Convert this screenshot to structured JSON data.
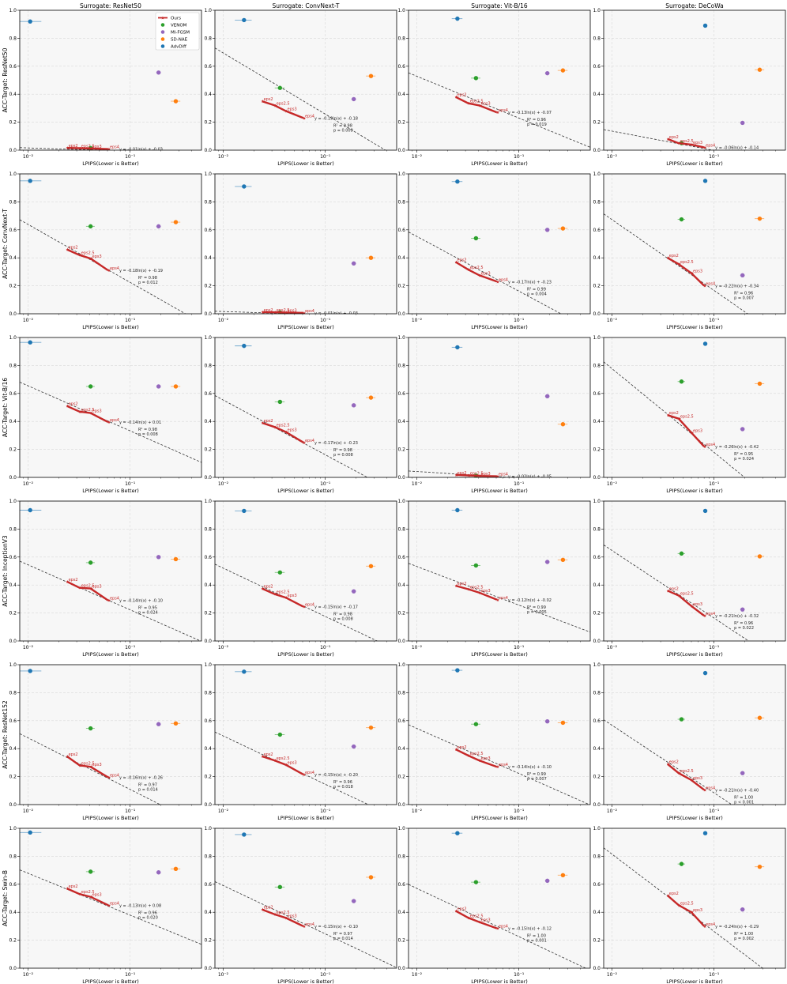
{
  "figure": {
    "xlabel": "LPIPS(Lower is Better)",
    "x_tick_labels": [
      "10⁻²",
      "10⁻¹"
    ],
    "y_tick_labels": [
      "0.0",
      "0.2",
      "0.4",
      "0.6",
      "0.8",
      "1.0"
    ]
  },
  "legend": {
    "placement": "top-right of first panel",
    "entries": [
      {
        "name": "Ours",
        "color": "#c62828",
        "marker": "star-line"
      },
      {
        "name": "VENOM",
        "color": "#2ca02c",
        "marker": "circle"
      },
      {
        "name": "MI-FGSM",
        "color": "#9467bd",
        "marker": "circle"
      },
      {
        "name": "SD-NAE",
        "color": "#ff7f0e",
        "marker": "circle"
      },
      {
        "name": "AdvDiff",
        "color": "#1f77b4",
        "marker": "circle"
      }
    ]
  },
  "surrogates": [
    "Surrogate: ResNet50",
    "Surrogate: ConvNext-T",
    "Surrogate: Vit-B/16",
    "Surrogate: DeCoWa"
  ],
  "targets": [
    "ACC-Target: ResNet50",
    "ACC-Target: ConvNext-T",
    "ACC-Target: Vit-B/16",
    "ACC-Target: InceptionV3",
    "ACC-Target: ResNet152",
    "ACC-Target: Swin-B"
  ],
  "chart_data": {
    "type": "scatter",
    "x_scale": "log",
    "xlim": [
      0.0083,
      0.5
    ],
    "ylim": [
      0,
      1
    ],
    "ours_labels": [
      "eps2",
      "eps2.5",
      "eps3",
      "eps4"
    ],
    "panels": [
      {
        "row": 0,
        "col": 0,
        "ours_x": [
          0.024,
          0.032,
          0.041,
          0.061
        ],
        "ours_y": [
          0.016,
          0.014,
          0.012,
          0.008
        ],
        "fit_a": -0.01,
        "fit_b": -0.03,
        "eq": "y = -0.01ln(x) + -0.03",
        "r2": "R² = 0.98",
        "p": "p = 0.012",
        "venom": [
          0.041,
          0.015
        ],
        "mifgsm": [
          0.19,
          0.555
        ],
        "sdnae": [
          0.28,
          0.35
        ],
        "advdiff": [
          0.0105,
          0.92
        ]
      },
      {
        "row": 0,
        "col": 1,
        "ours_x": [
          0.024,
          0.032,
          0.041,
          0.061
        ],
        "ours_y": [
          0.35,
          0.32,
          0.28,
          0.23
        ],
        "fit_a": -0.19,
        "fit_b": -0.18,
        "eq": "y = -0.19ln(x) + -0.18",
        "r2": "R² = 0.98",
        "p": "p = 0.009",
        "venom": [
          0.036,
          0.445
        ],
        "mifgsm": [
          0.19,
          0.365
        ],
        "sdnae": [
          0.28,
          0.53
        ],
        "advdiff": [
          0.016,
          0.93
        ]
      },
      {
        "row": 0,
        "col": 2,
        "ours_x": [
          0.024,
          0.032,
          0.041,
          0.061
        ],
        "ours_y": [
          0.38,
          0.335,
          0.32,
          0.27
        ],
        "fit_a": -0.13,
        "fit_b": -0.07,
        "eq": "y = -0.13ln(x) + -0.07",
        "r2": "R² = 0.96",
        "p": "p = 0.019",
        "venom": [
          0.038,
          0.515
        ],
        "mifgsm": [
          0.19,
          0.55
        ],
        "sdnae": [
          0.27,
          0.57
        ],
        "advdiff": [
          0.025,
          0.94
        ]
      },
      {
        "row": 0,
        "col": 3,
        "ours_x": [
          0.035,
          0.045,
          0.06,
          0.08
        ],
        "ours_y": [
          0.08,
          0.05,
          0.04,
          0.02
        ],
        "fit_a": -0.06,
        "fit_b": -0.14,
        "eq": "y = -0.06ln(x) + -0.14",
        "r2": "R² = 0.99",
        "p": "p = 0.006",
        "venom": [
          0.048,
          0.05
        ],
        "mifgsm": [
          0.19,
          0.195
        ],
        "sdnae": [
          0.28,
          0.575
        ],
        "advdiff": [
          0.082,
          0.89
        ]
      },
      {
        "row": 1,
        "col": 0,
        "ours_x": [
          0.024,
          0.032,
          0.041,
          0.061
        ],
        "ours_y": [
          0.46,
          0.42,
          0.395,
          0.31
        ],
        "fit_a": -0.18,
        "fit_b": -0.19,
        "eq": "y = -0.18ln(x) + -0.19",
        "r2": "R² = 0.98",
        "p": "p = 0.012",
        "venom": [
          0.041,
          0.625
        ],
        "mifgsm": [
          0.19,
          0.625
        ],
        "sdnae": [
          0.28,
          0.655
        ],
        "advdiff": [
          0.0105,
          0.95
        ]
      },
      {
        "row": 1,
        "col": 1,
        "ours_x": [
          0.024,
          0.032,
          0.041,
          0.061
        ],
        "ours_y": [
          0.012,
          0.011,
          0.009,
          0.007
        ],
        "fit_a": -0.01,
        "fit_b": -0.03,
        "eq": "y = -0.01ln(x) + -0.03",
        "r2": "R² = 0.84",
        "p": "p = 0.084",
        "venom": [
          0.036,
          0.01
        ],
        "mifgsm": [
          0.19,
          0.36
        ],
        "sdnae": [
          0.28,
          0.4
        ],
        "advdiff": [
          0.016,
          0.91
        ]
      },
      {
        "row": 1,
        "col": 2,
        "ours_x": [
          0.024,
          0.032,
          0.041,
          0.061
        ],
        "ours_y": [
          0.37,
          0.315,
          0.275,
          0.23
        ],
        "fit_a": -0.17,
        "fit_b": -0.23,
        "eq": "y = -0.17ln(x) + -0.23",
        "r2": "R² = 0.99",
        "p": "p = 0.004",
        "venom": [
          0.038,
          0.54
        ],
        "mifgsm": [
          0.19,
          0.6
        ],
        "sdnae": [
          0.27,
          0.61
        ],
        "advdiff": [
          0.025,
          0.945
        ]
      },
      {
        "row": 1,
        "col": 3,
        "ours_x": [
          0.035,
          0.045,
          0.06,
          0.08
        ],
        "ours_y": [
          0.4,
          0.355,
          0.29,
          0.2
        ],
        "fit_a": -0.22,
        "fit_b": -0.34,
        "eq": "y = -0.22ln(x) + -0.34",
        "r2": "R² = 0.96",
        "p": "p = 0.007",
        "venom": [
          0.048,
          0.675
        ],
        "mifgsm": [
          0.19,
          0.275
        ],
        "sdnae": [
          0.28,
          0.68
        ],
        "advdiff": [
          0.082,
          0.95
        ]
      },
      {
        "row": 2,
        "col": 0,
        "ours_x": [
          0.024,
          0.032,
          0.041,
          0.061
        ],
        "ours_y": [
          0.51,
          0.47,
          0.46,
          0.395
        ],
        "fit_a": -0.14,
        "fit_b": 0.01,
        "eq": "y = -0.14ln(x) + 0.01",
        "r2": "R² = 0.98",
        "p": "p = 0.008",
        "venom": [
          0.041,
          0.65
        ],
        "mifgsm": [
          0.19,
          0.65
        ],
        "sdnae": [
          0.28,
          0.65
        ],
        "advdiff": [
          0.0105,
          0.965
        ]
      },
      {
        "row": 2,
        "col": 1,
        "ours_x": [
          0.024,
          0.032,
          0.041,
          0.061
        ],
        "ours_y": [
          0.39,
          0.36,
          0.325,
          0.25
        ],
        "fit_a": -0.17,
        "fit_b": -0.23,
        "eq": "y = -0.17ln(x) + -0.23",
        "r2": "R² = 0.98",
        "p": "p = 0.008",
        "venom": [
          0.036,
          0.54
        ],
        "mifgsm": [
          0.19,
          0.515
        ],
        "sdnae": [
          0.28,
          0.57
        ],
        "advdiff": [
          0.016,
          0.94
        ]
      },
      {
        "row": 2,
        "col": 2,
        "ours_x": [
          0.024,
          0.032,
          0.041,
          0.061
        ],
        "ours_y": [
          0.018,
          0.014,
          0.01,
          0.008
        ],
        "fit_a": -0.02,
        "fit_b": -0.05,
        "eq": "y = -0.02ln(x) + -0.05",
        "r2": "R² = 0.72",
        "p": "p = 0.150",
        "venom": [
          0.038,
          0.012
        ],
        "mifgsm": [
          0.19,
          0.58
        ],
        "sdnae": [
          0.27,
          0.38
        ],
        "advdiff": [
          0.025,
          0.93
        ]
      },
      {
        "row": 2,
        "col": 3,
        "ours_x": [
          0.035,
          0.045,
          0.06,
          0.08
        ],
        "ours_y": [
          0.445,
          0.42,
          0.32,
          0.22
        ],
        "fit_a": -0.26,
        "fit_b": -0.42,
        "eq": "y = -0.26ln(x) + -0.42",
        "r2": "R² = 0.95",
        "p": "p = 0.024",
        "venom": [
          0.048,
          0.685
        ],
        "mifgsm": [
          0.19,
          0.345
        ],
        "sdnae": [
          0.28,
          0.67
        ],
        "advdiff": [
          0.082,
          0.955
        ]
      },
      {
        "row": 3,
        "col": 0,
        "ours_x": [
          0.024,
          0.032,
          0.041,
          0.061
        ],
        "ours_y": [
          0.425,
          0.38,
          0.375,
          0.29
        ],
        "fit_a": -0.14,
        "fit_b": -0.1,
        "eq": "y = -0.14ln(x) + -0.10",
        "r2": "R² = 0.95",
        "p": "p = 0.024",
        "venom": [
          0.041,
          0.56
        ],
        "mifgsm": [
          0.19,
          0.6
        ],
        "sdnae": [
          0.28,
          0.585
        ],
        "advdiff": [
          0.0105,
          0.935
        ]
      },
      {
        "row": 3,
        "col": 1,
        "ours_x": [
          0.024,
          0.032,
          0.041,
          0.061
        ],
        "ours_y": [
          0.375,
          0.335,
          0.31,
          0.245
        ],
        "fit_a": -0.15,
        "fit_b": -0.17,
        "eq": "y = -0.15ln(x) + -0.17",
        "r2": "R² = 0.98",
        "p": "p = 0.008",
        "venom": [
          0.036,
          0.49
        ],
        "mifgsm": [
          0.19,
          0.355
        ],
        "sdnae": [
          0.28,
          0.535
        ],
        "advdiff": [
          0.016,
          0.93
        ]
      },
      {
        "row": 3,
        "col": 2,
        "ours_x": [
          0.024,
          0.032,
          0.041,
          0.061
        ],
        "ours_y": [
          0.395,
          0.37,
          0.345,
          0.295
        ],
        "fit_a": -0.12,
        "fit_b": -0.02,
        "eq": "y = -0.12ln(x) + -0.02",
        "r2": "R² = 0.99",
        "p": "p = 0.005",
        "venom": [
          0.038,
          0.54
        ],
        "mifgsm": [
          0.19,
          0.565
        ],
        "sdnae": [
          0.27,
          0.58
        ],
        "advdiff": [
          0.025,
          0.935
        ]
      },
      {
        "row": 3,
        "col": 3,
        "ours_x": [
          0.035,
          0.045,
          0.06,
          0.08
        ],
        "ours_y": [
          0.36,
          0.325,
          0.25,
          0.18
        ],
        "fit_a": -0.21,
        "fit_b": -0.32,
        "eq": "y = -0.21ln(x) + -0.32",
        "r2": "R² = 0.96",
        "p": "p = 0.022",
        "venom": [
          0.048,
          0.625
        ],
        "mifgsm": [
          0.19,
          0.225
        ],
        "sdnae": [
          0.28,
          0.605
        ],
        "advdiff": [
          0.082,
          0.93
        ]
      },
      {
        "row": 4,
        "col": 0,
        "ours_x": [
          0.024,
          0.032,
          0.041,
          0.061
        ],
        "ours_y": [
          0.345,
          0.28,
          0.27,
          0.195
        ],
        "fit_a": -0.16,
        "fit_b": -0.26,
        "eq": "y = -0.16ln(x) + -0.26",
        "r2": "R² = 0.97",
        "p": "p = 0.014",
        "venom": [
          0.041,
          0.545
        ],
        "mifgsm": [
          0.19,
          0.575
        ],
        "sdnae": [
          0.28,
          0.58
        ],
        "advdiff": [
          0.0105,
          0.955
        ]
      },
      {
        "row": 4,
        "col": 1,
        "ours_x": [
          0.024,
          0.032,
          0.041,
          0.061
        ],
        "ours_y": [
          0.345,
          0.315,
          0.285,
          0.215
        ],
        "fit_a": -0.15,
        "fit_b": -0.2,
        "eq": "y = -0.15ln(x) + -0.20",
        "r2": "R² = 0.96",
        "p": "p = 0.018",
        "venom": [
          0.036,
          0.5
        ],
        "mifgsm": [
          0.19,
          0.415
        ],
        "sdnae": [
          0.28,
          0.55
        ],
        "advdiff": [
          0.016,
          0.95
        ]
      },
      {
        "row": 4,
        "col": 2,
        "ours_x": [
          0.024,
          0.032,
          0.041,
          0.061
        ],
        "ours_y": [
          0.395,
          0.35,
          0.315,
          0.27
        ],
        "fit_a": -0.14,
        "fit_b": -0.1,
        "eq": "y = -0.14ln(x) + -0.10",
        "r2": "R² = 0.99",
        "p": "p = 0.007",
        "venom": [
          0.038,
          0.575
        ],
        "mifgsm": [
          0.19,
          0.595
        ],
        "sdnae": [
          0.27,
          0.585
        ],
        "advdiff": [
          0.025,
          0.96
        ]
      },
      {
        "row": 4,
        "col": 3,
        "ours_x": [
          0.035,
          0.045,
          0.06,
          0.08
        ],
        "ours_y": [
          0.29,
          0.225,
          0.175,
          0.105
        ],
        "fit_a": -0.21,
        "fit_b": -0.4,
        "eq": "y = -0.21ln(x) + -0.40",
        "r2": "R² = 1.00",
        "p": "p < 0.001",
        "venom": [
          0.048,
          0.61
        ],
        "mifgsm": [
          0.19,
          0.225
        ],
        "sdnae": [
          0.28,
          0.62
        ],
        "advdiff": [
          0.082,
          0.94
        ]
      },
      {
        "row": 5,
        "col": 0,
        "ours_x": [
          0.024,
          0.032,
          0.041,
          0.061
        ],
        "ours_y": [
          0.57,
          0.53,
          0.51,
          0.45
        ],
        "fit_a": -0.13,
        "fit_b": 0.08,
        "eq": "y = -0.13ln(x) + 0.08",
        "r2": "R² = 0.96",
        "p": "p = 0.020",
        "venom": [
          0.041,
          0.69
        ],
        "mifgsm": [
          0.19,
          0.685
        ],
        "sdnae": [
          0.28,
          0.71
        ],
        "advdiff": [
          0.0105,
          0.97
        ]
      },
      {
        "row": 5,
        "col": 1,
        "ours_x": [
          0.024,
          0.032,
          0.041,
          0.061
        ],
        "ours_y": [
          0.42,
          0.385,
          0.36,
          0.3
        ],
        "fit_a": -0.15,
        "fit_b": -0.1,
        "eq": "y = -0.15ln(x) + -0.10",
        "r2": "R² = 0.97",
        "p": "p = 0.014",
        "venom": [
          0.036,
          0.58
        ],
        "mifgsm": [
          0.19,
          0.48
        ],
        "sdnae": [
          0.28,
          0.65
        ],
        "advdiff": [
          0.016,
          0.955
        ]
      },
      {
        "row": 5,
        "col": 2,
        "ours_x": [
          0.024,
          0.032,
          0.041,
          0.061
        ],
        "ours_y": [
          0.41,
          0.36,
          0.33,
          0.285
        ],
        "fit_a": -0.15,
        "fit_b": -0.12,
        "eq": "y = -0.15ln(x) + -0.12",
        "r2": "R² = 1.00",
        "p": "p = 0.001",
        "venom": [
          0.038,
          0.615
        ],
        "mifgsm": [
          0.19,
          0.625
        ],
        "sdnae": [
          0.27,
          0.665
        ],
        "advdiff": [
          0.025,
          0.965
        ]
      },
      {
        "row": 5,
        "col": 3,
        "ours_x": [
          0.035,
          0.045,
          0.06,
          0.08
        ],
        "ours_y": [
          0.52,
          0.45,
          0.4,
          0.3
        ],
        "fit_a": -0.24,
        "fit_b": -0.29,
        "eq": "y = -0.24ln(x) + -0.29",
        "r2": "R² = 1.00",
        "p": "p = 0.002",
        "venom": [
          0.048,
          0.745
        ],
        "mifgsm": [
          0.19,
          0.42
        ],
        "sdnae": [
          0.28,
          0.725
        ],
        "advdiff": [
          0.082,
          0.965
        ]
      }
    ]
  }
}
